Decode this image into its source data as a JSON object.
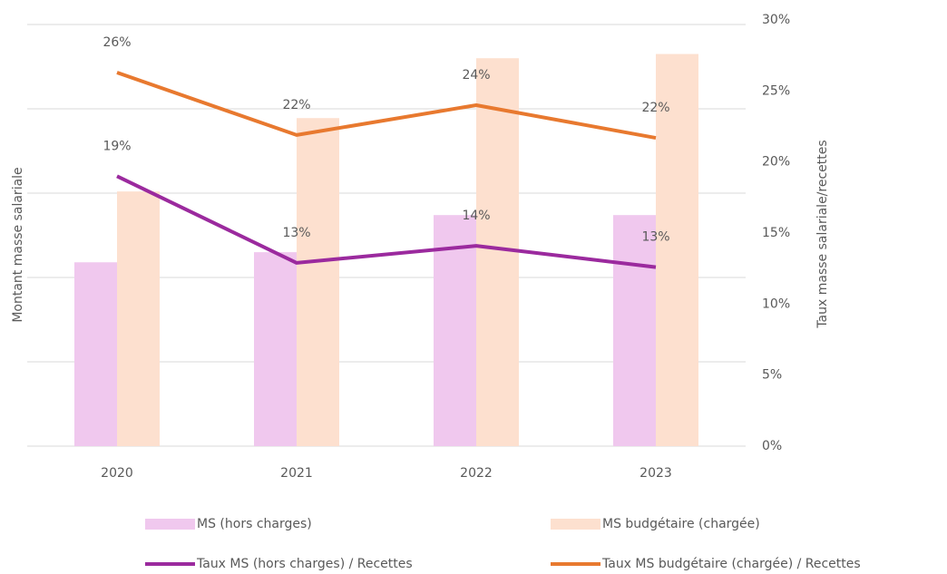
{
  "chart_data": {
    "type": "combo",
    "y_axis_label": "Montant masse salariale",
    "y2_axis_label": "Taux masse salariale/recettes",
    "categories": [
      "2020",
      "2021",
      "2022",
      "2023"
    ],
    "ylim": [
      0,
      5
    ],
    "yticks": [
      0,
      1,
      2,
      3,
      4,
      5
    ],
    "grid": true,
    "y2lim": [
      0,
      30
    ],
    "y2ticks": [
      {
        "value": 0,
        "label": "0%"
      },
      {
        "value": 5,
        "label": "5%"
      },
      {
        "value": 10,
        "label": "10%"
      },
      {
        "value": 15,
        "label": "15%"
      },
      {
        "value": 20,
        "label": "20%"
      },
      {
        "value": 25,
        "label": "25%"
      },
      {
        "value": 30,
        "label": "30%"
      }
    ],
    "series": [
      {
        "name": "MS (hors charges)",
        "type": "bar",
        "color": "#f0c8ee",
        "values": [
          2.18,
          2.3,
          2.74,
          2.74
        ]
      },
      {
        "name": "MS budgétaire (chargée)",
        "type": "bar",
        "color": "#fde0cf",
        "values": [
          3.02,
          3.89,
          4.6,
          4.65
        ]
      },
      {
        "name": "Taux MS (hors charges) / Recettes",
        "type": "line",
        "axis": "y2",
        "color": "#9b2a9e",
        "values": [
          19.0,
          12.9,
          14.1,
          12.6
        ],
        "value_labels": [
          "19%",
          "13%",
          "14%",
          "13%"
        ]
      },
      {
        "name": "Taux MS budgétaire (chargée) / Recettes",
        "type": "line",
        "axis": "y2",
        "color": "#e8792f",
        "values": [
          26.3,
          21.9,
          24.0,
          21.7
        ],
        "value_labels": [
          "26%",
          "22%",
          "24%",
          "22%"
        ]
      }
    ]
  }
}
